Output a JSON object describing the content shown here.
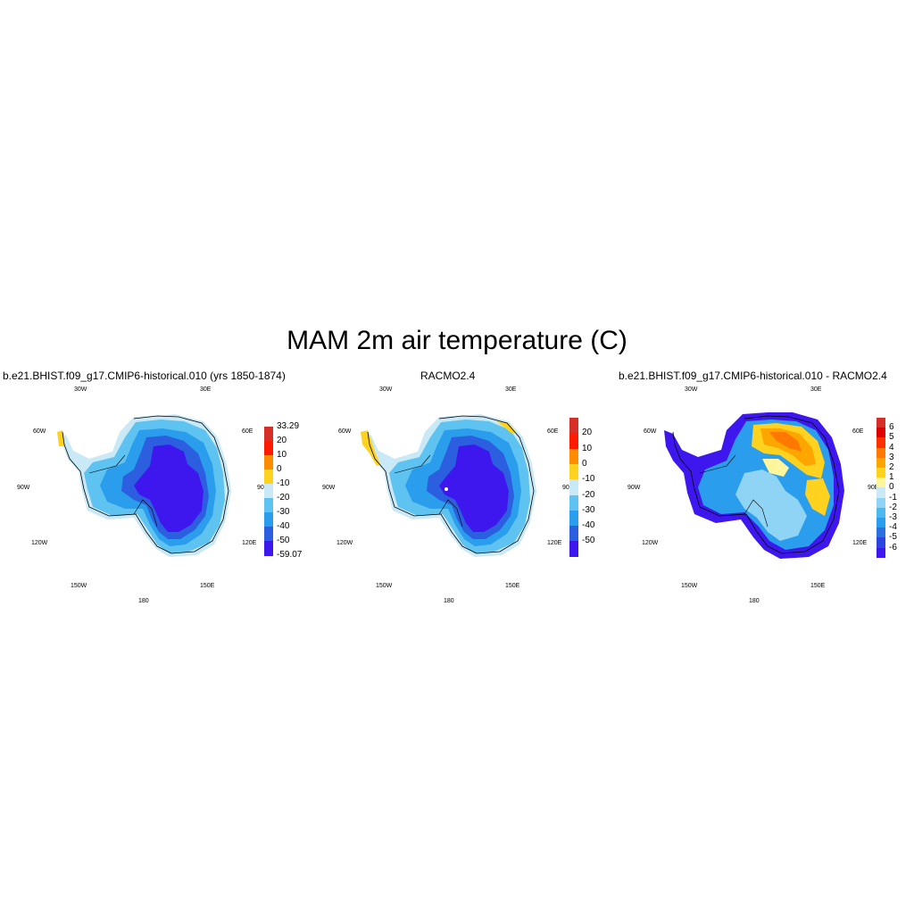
{
  "title": "MAM 2m air temperature (C)",
  "grid_labels": {
    "lon_30w": "30W",
    "lon_30e": "30E",
    "lon_60w": "60W",
    "lon_60e": "60E",
    "lon_90w": "90W",
    "lon_90e": "90E",
    "lon_120w": "120W",
    "lon_120e": "120E",
    "lon_150w": "150W",
    "lon_150e": "150E",
    "lon_180": "180"
  },
  "panels": [
    {
      "title": "b.e21.BHIST.f09_g17.CMIP6-historical.010 (yrs 1850-1874)",
      "colorbar": {
        "colors": [
          "#d62f27",
          "#ff1a00",
          "#ff8c00",
          "#ffd21f",
          "#c9e9f6",
          "#5ec3f1",
          "#2a9ded",
          "#2c5fe0",
          "#3d17ee"
        ],
        "labels": [
          "33.29",
          "20",
          "10",
          "0",
          "-10",
          "-20",
          "-30",
          "-40",
          "-50",
          "-59.07"
        ]
      }
    },
    {
      "title": "RACMO2.4",
      "colorbar": {
        "colors": [
          "#d62f27",
          "#ff1a00",
          "#ff8c00",
          "#ffd21f",
          "#c9e9f6",
          "#5ec3f1",
          "#2a9ded",
          "#2c5fe0",
          "#3d17ee"
        ],
        "labels": [
          "20",
          "10",
          "0",
          "-10",
          "-20",
          "-30",
          "-40",
          "-50"
        ]
      }
    },
    {
      "title": "b.e21.BHIST.f09_g17.CMIP6-historical.010 - RACMO2.4",
      "colorbar": {
        "colors": [
          "#d62f27",
          "#e00000",
          "#ff3000",
          "#ff7800",
          "#ffa500",
          "#ffd21f",
          "#fff59d",
          "#c9e9f6",
          "#8fd4f5",
          "#4cb8f0",
          "#2a9ded",
          "#2c6fe0",
          "#2c45e0",
          "#3d17ee"
        ],
        "labels": [
          "6",
          "5",
          "4",
          "3",
          "2",
          "1",
          "0",
          "-1",
          "-2",
          "-3",
          "-4",
          "-5",
          "-6"
        ]
      }
    }
  ]
}
